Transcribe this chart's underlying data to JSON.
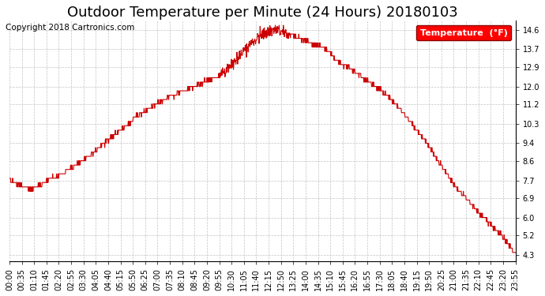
{
  "title": "Outdoor Temperature per Minute (24 Hours) 20180103",
  "copyright_text": "Copyright 2018 Cartronics.com",
  "legend_label": "Temperature  (°F)",
  "background_color": "#ffffff",
  "line_color": "#cc0000",
  "grid_color": "#aaaaaa",
  "yticks": [
    4.3,
    5.2,
    6.0,
    6.9,
    7.7,
    8.6,
    9.4,
    10.3,
    11.2,
    12.0,
    12.9,
    13.7,
    14.6
  ],
  "ylim": [
    4.0,
    15.0
  ],
  "x_tick_labels": [
    "00:00",
    "00:35",
    "01:10",
    "01:45",
    "02:20",
    "02:55",
    "03:30",
    "04:05",
    "04:40",
    "05:15",
    "05:50",
    "06:25",
    "07:00",
    "07:35",
    "08:10",
    "08:45",
    "09:20",
    "09:55",
    "10:30",
    "11:05",
    "11:40",
    "12:15",
    "12:50",
    "13:25",
    "14:00",
    "14:35",
    "15:10",
    "15:45",
    "16:20",
    "16:55",
    "17:30",
    "18:05",
    "18:40",
    "19:15",
    "19:50",
    "20:25",
    "21:00",
    "21:35",
    "22:10",
    "22:45",
    "23:20",
    "23:55"
  ],
  "total_minutes": 1440,
  "num_xticks": 42,
  "title_fontsize": 13,
  "tick_fontsize": 7,
  "copyright_fontsize": 7.5,
  "key_times": [
    0,
    30,
    60,
    90,
    120,
    150,
    180,
    210,
    240,
    270,
    300,
    330,
    360,
    390,
    420,
    450,
    480,
    510,
    540,
    570,
    600,
    630,
    660,
    690,
    720,
    750,
    780,
    810,
    840,
    870,
    900,
    930,
    960,
    990,
    1020,
    1050,
    1080,
    1110,
    1140,
    1170,
    1200,
    1230,
    1260,
    1290,
    1320,
    1350,
    1380,
    1410,
    1439
  ],
  "key_temps": [
    7.7,
    7.5,
    7.3,
    7.5,
    7.8,
    8.0,
    8.3,
    8.6,
    9.0,
    9.4,
    9.8,
    10.2,
    10.6,
    10.9,
    11.2,
    11.5,
    11.7,
    11.9,
    12.1,
    12.3,
    12.5,
    13.0,
    13.5,
    14.0,
    14.4,
    14.6,
    14.5,
    14.3,
    14.1,
    13.9,
    13.7,
    13.2,
    12.9,
    12.6,
    12.2,
    11.9,
    11.5,
    11.0,
    10.4,
    9.8,
    9.1,
    8.3,
    7.6,
    7.0,
    6.5,
    6.0,
    5.5,
    5.0,
    4.3
  ]
}
